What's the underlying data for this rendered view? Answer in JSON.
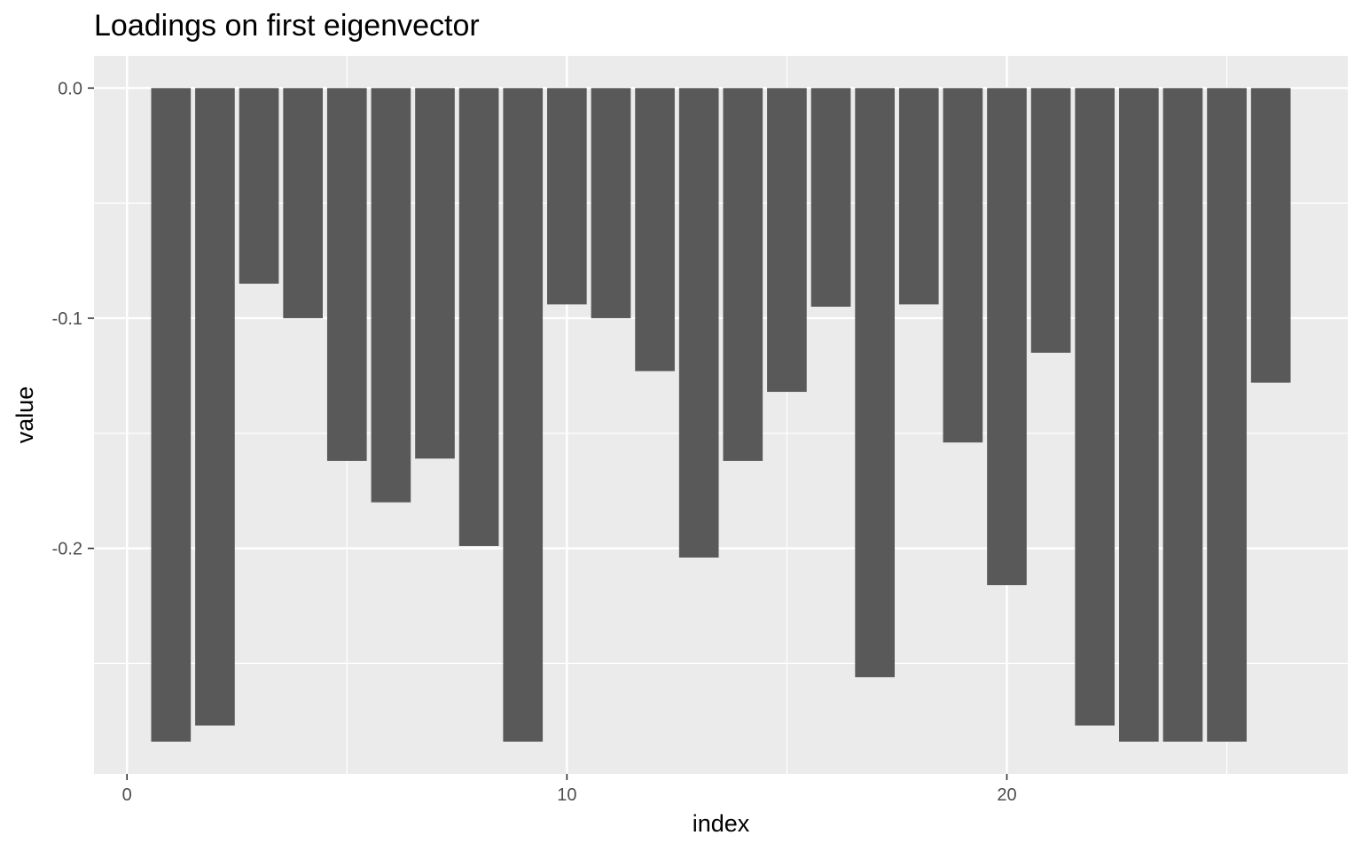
{
  "chart_data": {
    "type": "bar",
    "title": "Loadings on first eigenvector",
    "xlabel": "index",
    "ylabel": "value",
    "x": [
      1,
      2,
      3,
      4,
      5,
      6,
      7,
      8,
      9,
      10,
      11,
      12,
      13,
      14,
      15,
      16,
      17,
      18,
      19,
      20,
      21,
      22,
      23,
      24,
      25,
      26
    ],
    "values": [
      -0.284,
      -0.277,
      -0.085,
      -0.1,
      -0.162,
      -0.18,
      -0.161,
      -0.199,
      -0.284,
      -0.094,
      -0.1,
      -0.123,
      -0.204,
      -0.162,
      -0.132,
      -0.095,
      -0.256,
      -0.094,
      -0.154,
      -0.216,
      -0.115,
      -0.277,
      -0.284,
      -0.284,
      -0.284,
      -0.128
    ],
    "xlim": [
      -0.75,
      27.75
    ],
    "ylim": [
      -0.298,
      0.014
    ],
    "x_ticks": [
      0,
      10,
      20
    ],
    "x_tick_labels": [
      "0",
      "10",
      "20"
    ],
    "y_ticks": [
      0.0,
      -0.1,
      -0.2
    ],
    "y_tick_labels": [
      "0.0",
      "-0.1",
      "-0.2"
    ],
    "grid": true,
    "colors": {
      "panel": "#ebebeb",
      "grid": "#ffffff",
      "bar": "#595959",
      "tick": "#333333"
    }
  }
}
